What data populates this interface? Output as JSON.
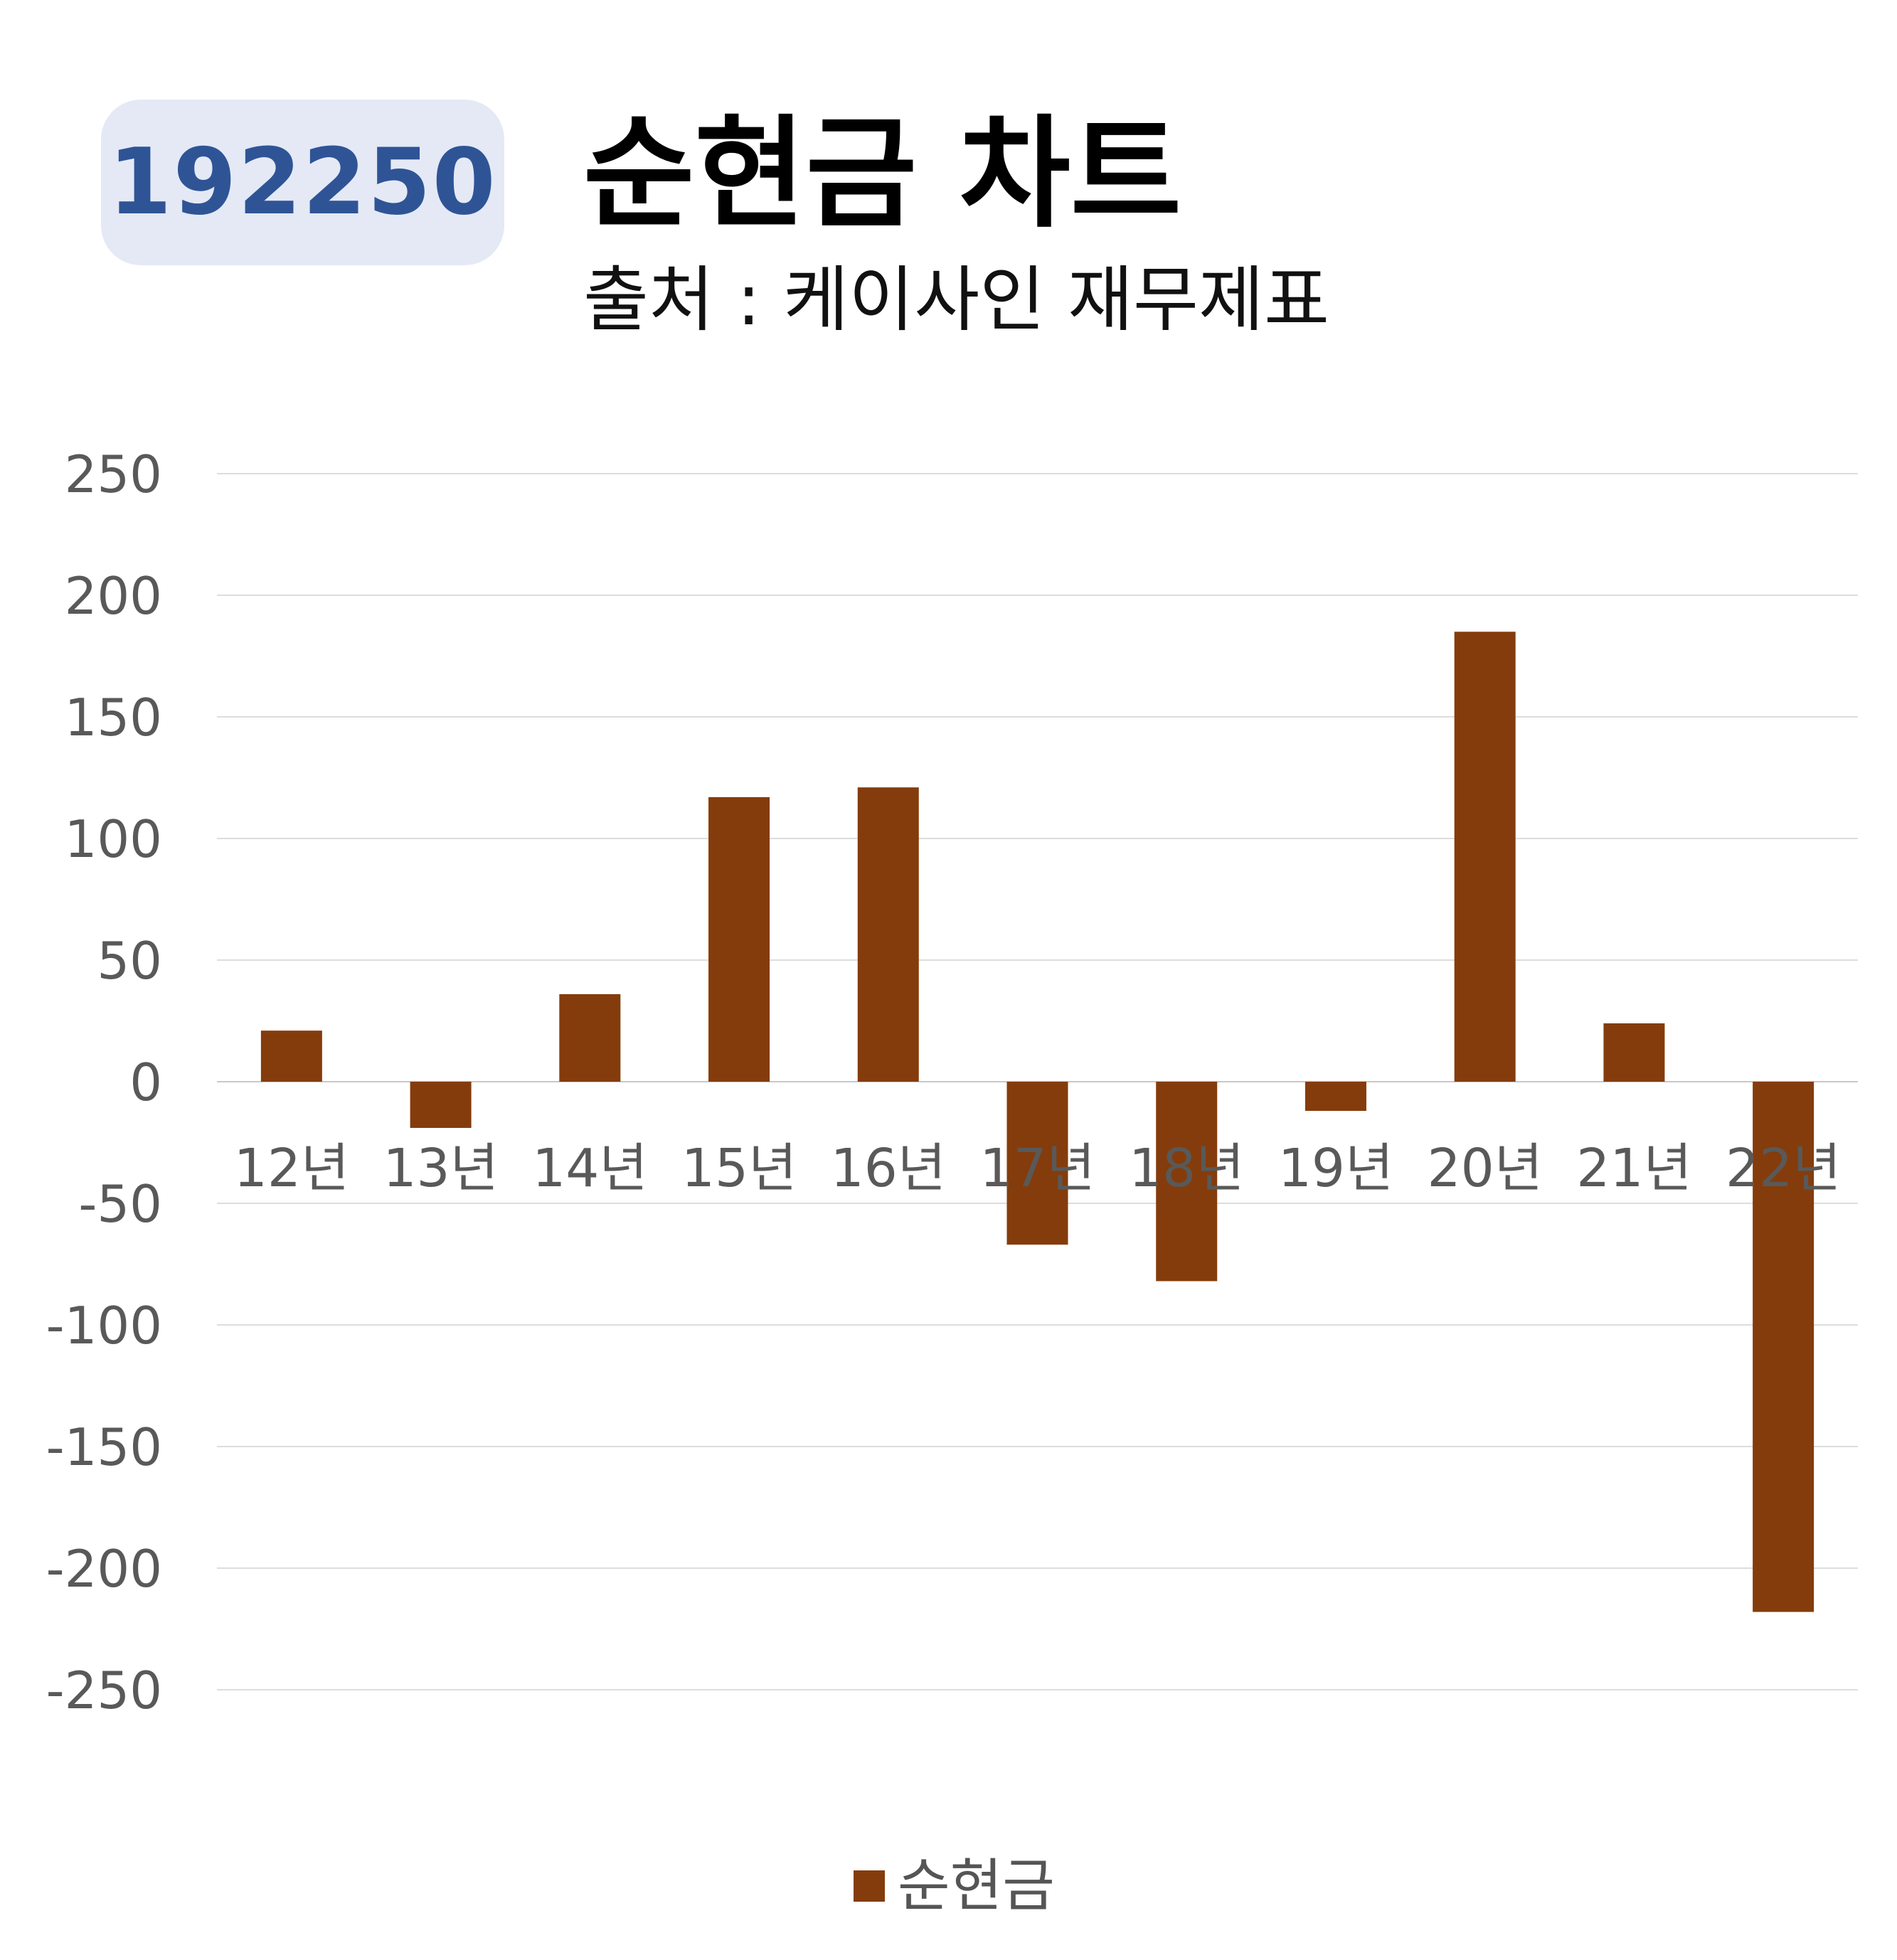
{
  "header": {
    "code": "192250",
    "title": "순현금 차트",
    "subtitle": "출처 : 케이사인 재무제표"
  },
  "colors": {
    "bar": "#843c0c",
    "badge_bg": "#e4e9f5",
    "badge_text": "#2f5496",
    "grid": "#dddddd",
    "tick_text": "#595959"
  },
  "chart_data": {
    "type": "bar",
    "categories": [
      "12년",
      "13년",
      "14년",
      "15년",
      "16년",
      "17년",
      "18년",
      "19년",
      "20년",
      "21년",
      "22년"
    ],
    "series": [
      {
        "name": "순현금",
        "values": [
          21,
          -19,
          36,
          117,
          121,
          -67,
          -82,
          -12,
          185,
          24,
          -218
        ]
      }
    ],
    "yticks": [
      250,
      200,
      150,
      100,
      50,
      0,
      -50,
      -100,
      -150,
      -200,
      -250
    ],
    "ylim": [
      -250,
      250
    ],
    "grid": true,
    "legend": "bottom"
  }
}
